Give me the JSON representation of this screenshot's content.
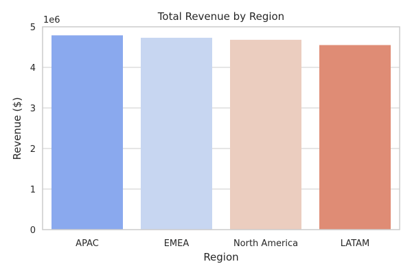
{
  "chart_data": {
    "type": "bar",
    "title": "Total Revenue by Region",
    "xlabel": "Region",
    "ylabel": "Revenue ($)",
    "offset_label": "1e6",
    "categories": [
      "APAC",
      "EMEA",
      "North America",
      "LATAM"
    ],
    "values": [
      4790000,
      4730000,
      4680000,
      4550000
    ],
    "colors": [
      "#8aa9ee",
      "#c7d6f1",
      "#ebcdbf",
      "#df8c75"
    ],
    "ylim": [
      0,
      5000000
    ],
    "yticks": [
      0,
      1000000,
      2000000,
      3000000,
      4000000,
      5000000
    ],
    "ytick_labels": [
      "0",
      "1",
      "2",
      "3",
      "4",
      "5"
    ],
    "grid": true,
    "grid_axis": "y",
    "legend": false
  }
}
